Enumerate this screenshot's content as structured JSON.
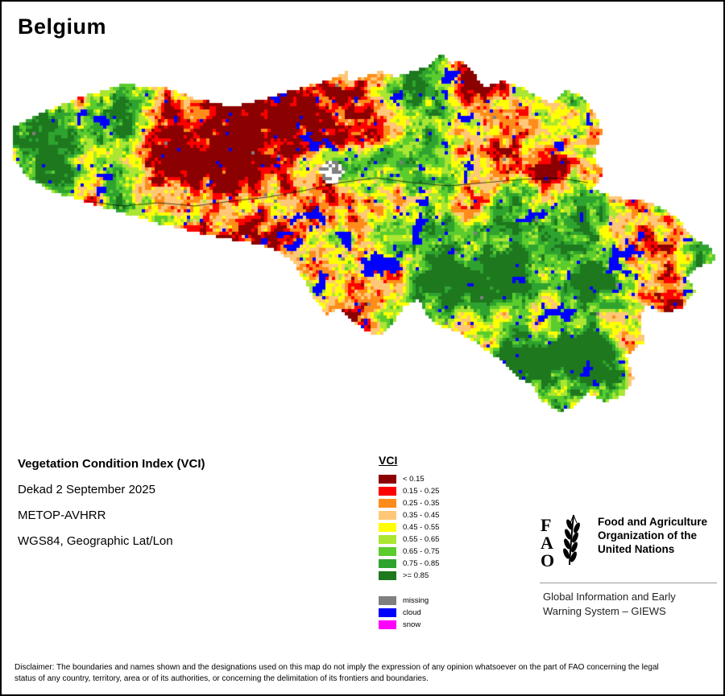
{
  "page": {
    "title": "Belgium"
  },
  "info": {
    "product": "Vegetation Condition Index (VCI)",
    "dekad": "Dekad 2 September 2025",
    "sensor": "METOP-AVHRR",
    "projection": "WGS84, Geographic Lat/Lon"
  },
  "legend": {
    "title": "VCI",
    "classes": [
      {
        "label": "< 0.15",
        "color": "#8B0000"
      },
      {
        "label": "0.15 - 0.25",
        "color": "#FF0000"
      },
      {
        "label": "0.25 - 0.35",
        "color": "#FF8C1A"
      },
      {
        "label": "0.35 - 0.45",
        "color": "#FFC878"
      },
      {
        "label": "0.45 - 0.55",
        "color": "#FFFF00"
      },
      {
        "label": "0.55 - 0.65",
        "color": "#AAE632"
      },
      {
        "label": "0.65 - 0.75",
        "color": "#5ACC2D"
      },
      {
        "label": "0.75 - 0.85",
        "color": "#2FA32F"
      },
      {
        "label": ">= 0.85",
        "color": "#1E781E"
      }
    ],
    "special": [
      {
        "label": "missing",
        "color": "#808080"
      },
      {
        "label": "cloud",
        "color": "#0000FF"
      },
      {
        "label": "snow",
        "color": "#FF00FF"
      }
    ]
  },
  "branding": {
    "fao_name": "Food and Agriculture Organization of the United Nations",
    "giews": "Global Information and Early Warning System – GIEWS"
  },
  "disclaimer": "Disclaimer: The boundaries and names shown and the designations used on this map do not imply the expression of any opinion whatsoever on the part of FAO concerning the legal status of any country, territory, area or of its authorities, or concerning the delimitation of its frontiers and boundaries."
}
